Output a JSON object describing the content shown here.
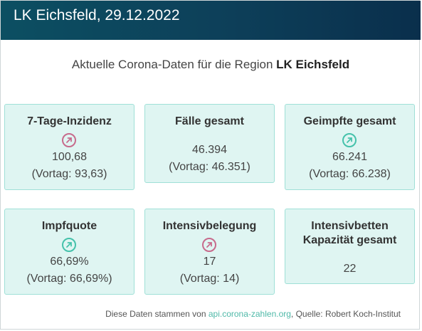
{
  "header": {
    "title": "LK Eichsfeld, 29.12.2022"
  },
  "intro": {
    "prefix": "Aktuelle Corona-Daten für die Region",
    "region": "LK Eichsfeld"
  },
  "cards": [
    {
      "title": "7-Tage-Inzidenz",
      "value": "100,68",
      "previous": "(Vortag: 93,63)",
      "trend_icon": "arrow-up-right-icon",
      "trend_color": "#c76b8c"
    },
    {
      "title": "Fälle gesamt",
      "value": "46.394",
      "previous": "(Vortag: 46.351)"
    },
    {
      "title": "Geimpfte gesamt",
      "value": "66.241",
      "previous": "(Vortag: 66.238)",
      "trend_icon": "arrow-up-right-icon",
      "trend_color": "#45c2ab"
    },
    {
      "title": "Impfquote",
      "value": "66,69%",
      "previous": "(Vortag: 66,69%)",
      "trend_icon": "arrow-up-right-icon",
      "trend_color": "#45c2ab"
    },
    {
      "title": "Intensivbelegung",
      "value": "17",
      "previous": "(Vortag: 14)",
      "trend_icon": "arrow-up-right-icon",
      "trend_color": "#c76b8c"
    },
    {
      "title_line1": "Intensivbetten",
      "title_line2": "Kapazität gesamt",
      "value": "22"
    }
  ],
  "footer": {
    "prefix": "Diese Daten stammen von",
    "link": "api.corona-zahlen.org",
    "suffix": ", Quelle: Robert Koch-Institut"
  }
}
